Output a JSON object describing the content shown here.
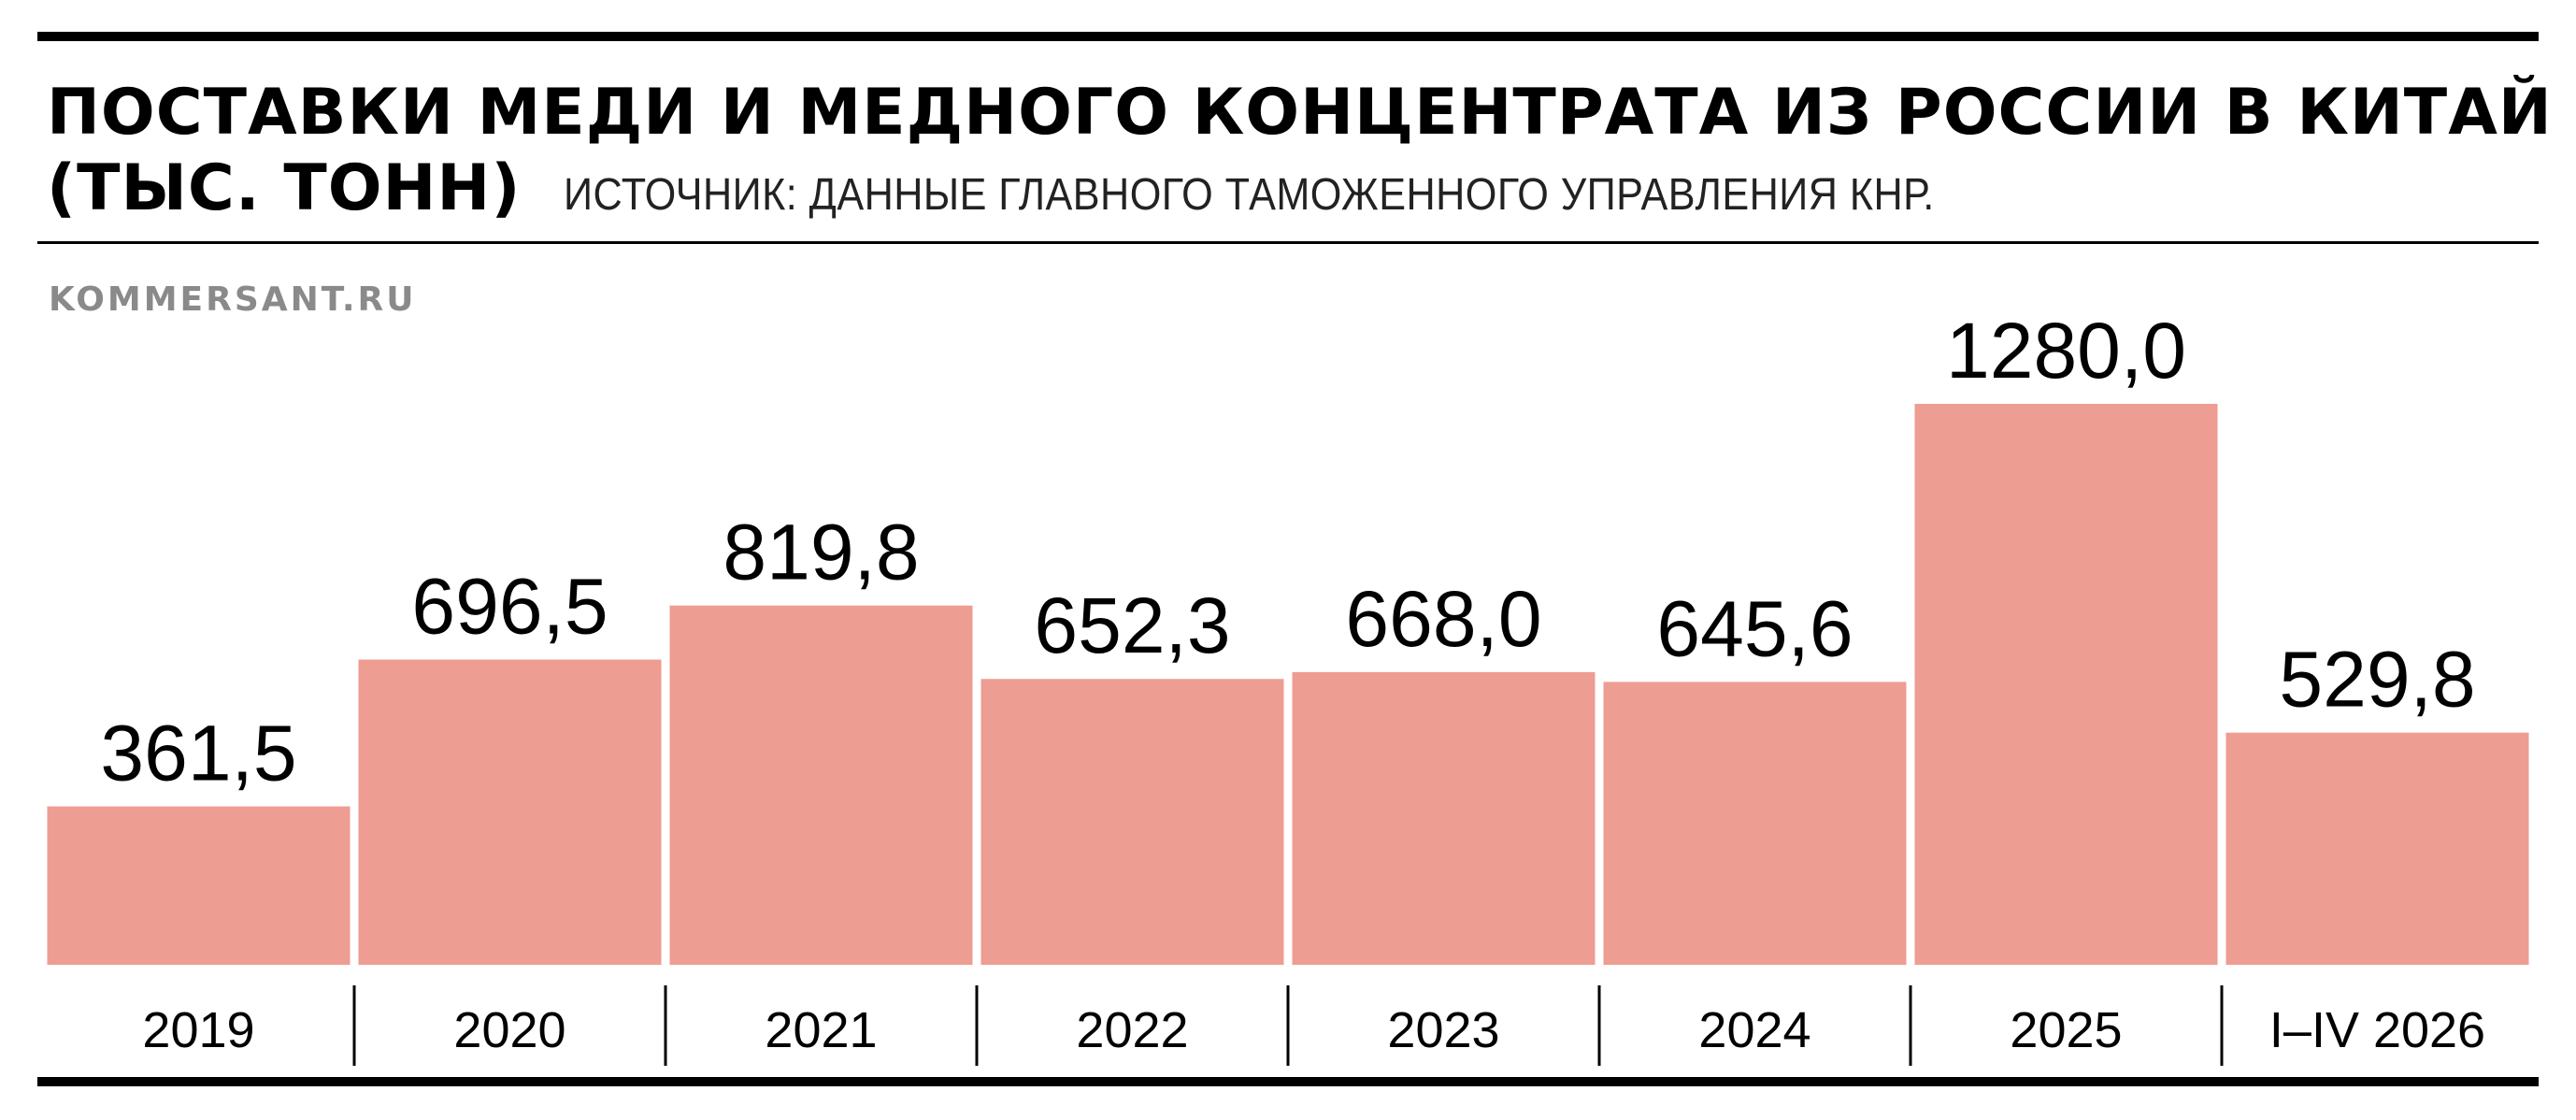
{
  "header": {
    "title_line1": "ПОСТАВКИ МЕДИ И МЕДНОГО КОНЦЕНТРАТА ИЗ РОССИИ В КИТАЙ",
    "title_unit": "(ТЫС. ТОНН)",
    "source": "ИСТОЧНИК: ДАННЫЕ ГЛАВНОГО ТАМОЖЕННОГО УПРАВЛЕНИЯ КНР."
  },
  "brand": "KOMMERSANT.RU",
  "colors": {
    "bar": "#ee9d93",
    "text": "#000000",
    "brand": "#8a8a8a"
  },
  "chart_data": {
    "type": "bar",
    "categories": [
      "2019",
      "2020",
      "2021",
      "2022",
      "2023",
      "2024",
      "2025",
      "I–IV 2026"
    ],
    "values": [
      361.5,
      696.5,
      819.8,
      652.3,
      668.0,
      645.6,
      1280.0,
      529.8
    ],
    "value_labels": [
      "361,5",
      "696,5",
      "819,8",
      "652,3",
      "668,0",
      "645,6",
      "1280,0",
      "529,8"
    ],
    "title": "ПОСТАВКИ МЕДИ И МЕДНОГО КОНЦЕНТРАТА ИЗ РОССИИ В КИТАЙ",
    "ylabel": "",
    "xlabel": "",
    "ylim": [
      0,
      1280
    ],
    "grid": false,
    "legend": "none"
  }
}
